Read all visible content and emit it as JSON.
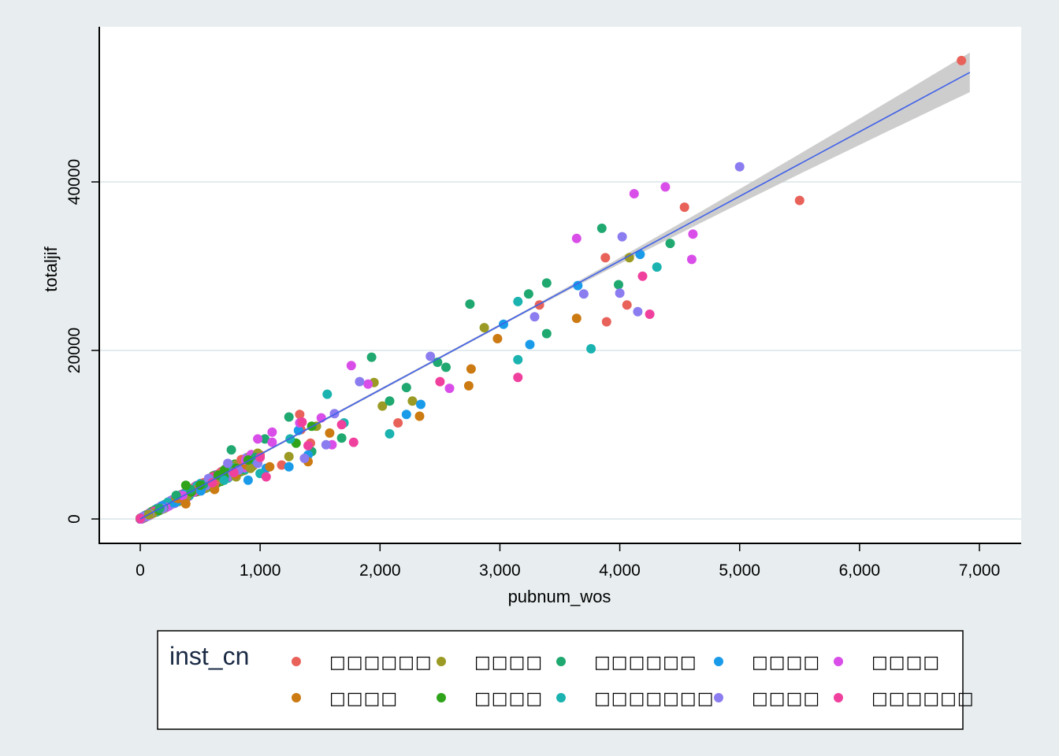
{
  "chart_data": {
    "type": "scatter",
    "xlabel": "pubnum_wos",
    "ylabel": "totaljif",
    "xlim": [
      0,
      7000
    ],
    "ylim": [
      0,
      55000
    ],
    "x_ticks": [
      "0",
      "1,000",
      "2,000",
      "3,000",
      "4,000",
      "5,000",
      "6,000",
      "7,000"
    ],
    "y_ticks": [
      "0",
      "20000",
      "40000"
    ],
    "grid": "horizontal",
    "legend": {
      "title": "inst_cn",
      "placement": "bottom",
      "entries": [
        {
          "label": "□□□□□□",
          "color": "#e8625a"
        },
        {
          "label": "□□□□",
          "color": "#9a9a24"
        },
        {
          "label": "□□□□□□",
          "color": "#1fa870"
        },
        {
          "label": "□□□□",
          "color": "#1a9bea"
        },
        {
          "label": "□□□□",
          "color": "#d94ee8"
        },
        {
          "label": "□□□□",
          "color": "#cc7a12"
        },
        {
          "label": "□□□□",
          "color": "#2fa41a"
        },
        {
          "label": "□□□□□□□",
          "color": "#1ab3b0"
        },
        {
          "label": "□□□□",
          "color": "#8b7cf0"
        },
        {
          "label": "□□□□□□",
          "color": "#f0409e"
        }
      ]
    },
    "fit_line": {
      "x": [
        0,
        6920
      ],
      "y": [
        0,
        53000
      ],
      "color": "#4060e8",
      "ci_color": "#c8c8c8"
    },
    "series": [
      {
        "color_index": 0,
        "points": [
          [
            6850,
            54400
          ],
          [
            5500,
            37800
          ],
          [
            4540,
            37000
          ],
          [
            3880,
            31000
          ],
          [
            4060,
            25400
          ],
          [
            3890,
            23400
          ],
          [
            3330,
            25400
          ],
          [
            1340,
            10600
          ],
          [
            1330,
            12400
          ],
          [
            2150,
            11400
          ],
          [
            1420,
            9000
          ],
          [
            1000,
            7600
          ],
          [
            1180,
            6400
          ]
        ]
      },
      {
        "color_index": 1,
        "points": [
          [
            4080,
            31000
          ],
          [
            2870,
            22700
          ],
          [
            1950,
            16200
          ],
          [
            2270,
            14000
          ],
          [
            2020,
            13400
          ],
          [
            980,
            7800
          ],
          [
            1240,
            7400
          ],
          [
            1470,
            11000
          ],
          [
            920,
            6000
          ],
          [
            800,
            5000
          ]
        ]
      },
      {
        "color_index": 2,
        "points": [
          [
            3850,
            34500
          ],
          [
            4420,
            32700
          ],
          [
            3990,
            27800
          ],
          [
            3390,
            28000
          ],
          [
            3240,
            26700
          ],
          [
            2750,
            25500
          ],
          [
            3390,
            22000
          ],
          [
            1930,
            19200
          ],
          [
            2480,
            18600
          ],
          [
            2550,
            18000
          ],
          [
            2220,
            15600
          ],
          [
            2080,
            14000
          ],
          [
            1240,
            12100
          ],
          [
            1680,
            9600
          ],
          [
            960,
            7300
          ],
          [
            760,
            8200
          ],
          [
            1430,
            8000
          ],
          [
            1040,
            9500
          ],
          [
            590,
            4500
          ],
          [
            420,
            3500
          ],
          [
            300,
            2800
          ]
        ]
      },
      {
        "color_index": 3,
        "points": [
          [
            4170,
            31400
          ],
          [
            3650,
            27700
          ],
          [
            3030,
            23100
          ],
          [
            3250,
            20700
          ],
          [
            2220,
            12400
          ],
          [
            2340,
            13600
          ],
          [
            1320,
            10500
          ],
          [
            1400,
            7600
          ],
          [
            1240,
            6200
          ],
          [
            1050,
            6000
          ],
          [
            900,
            4600
          ]
        ]
      },
      {
        "color_index": 4,
        "points": [
          [
            4380,
            39400
          ],
          [
            4120,
            38600
          ],
          [
            3640,
            33300
          ],
          [
            4610,
            33800
          ],
          [
            4600,
            30800
          ],
          [
            1760,
            18200
          ],
          [
            1510,
            12000
          ],
          [
            1330,
            11400
          ],
          [
            1100,
            10300
          ],
          [
            1100,
            9100
          ],
          [
            1900,
            16000
          ],
          [
            980,
            9500
          ],
          [
            2580,
            15500
          ],
          [
            880,
            7000
          ],
          [
            1600,
            8800
          ]
        ]
      },
      {
        "color_index": 5,
        "points": [
          [
            3640,
            23800
          ],
          [
            2760,
            17800
          ],
          [
            2740,
            15800
          ],
          [
            2980,
            21400
          ],
          [
            2330,
            12200
          ],
          [
            1580,
            10200
          ],
          [
            1400,
            6800
          ],
          [
            1080,
            6200
          ],
          [
            800,
            5300
          ],
          [
            620,
            3500
          ],
          [
            380,
            1800
          ]
        ]
      },
      {
        "color_index": 6,
        "points": [
          [
            1430,
            11000
          ],
          [
            1300,
            9000
          ],
          [
            900,
            7000
          ],
          [
            800,
            6000
          ],
          [
            700,
            5000
          ],
          [
            500,
            4000
          ],
          [
            380,
            4000
          ],
          [
            650,
            5200
          ]
        ]
      },
      {
        "color_index": 7,
        "points": [
          [
            4310,
            29900
          ],
          [
            3150,
            25800
          ],
          [
            3760,
            20200
          ],
          [
            3150,
            18900
          ],
          [
            2080,
            10100
          ],
          [
            1560,
            14800
          ],
          [
            1700,
            11400
          ],
          [
            1250,
            9500
          ],
          [
            1000,
            5400
          ],
          [
            700,
            4600
          ]
        ]
      },
      {
        "color_index": 8,
        "points": [
          [
            5000,
            41800
          ],
          [
            4020,
            33500
          ],
          [
            3700,
            26700
          ],
          [
            4000,
            26800
          ],
          [
            4150,
            24600
          ],
          [
            3290,
            24000
          ],
          [
            2420,
            19300
          ],
          [
            1830,
            16300
          ],
          [
            1620,
            12500
          ],
          [
            1550,
            8800
          ],
          [
            1370,
            7200
          ],
          [
            980,
            6600
          ],
          [
            730,
            6600
          ],
          [
            570,
            4800
          ],
          [
            820,
            5800
          ]
        ]
      },
      {
        "color_index": 9,
        "points": [
          [
            4190,
            28800
          ],
          [
            4250,
            24300
          ],
          [
            3150,
            16800
          ],
          [
            2500,
            16300
          ],
          [
            1680,
            11200
          ],
          [
            1780,
            9100
          ],
          [
            1400,
            8700
          ],
          [
            1350,
            11500
          ],
          [
            1000,
            7300
          ],
          [
            1050,
            5000
          ],
          [
            780,
            5500
          ],
          [
            600,
            4300
          ]
        ]
      }
    ]
  }
}
